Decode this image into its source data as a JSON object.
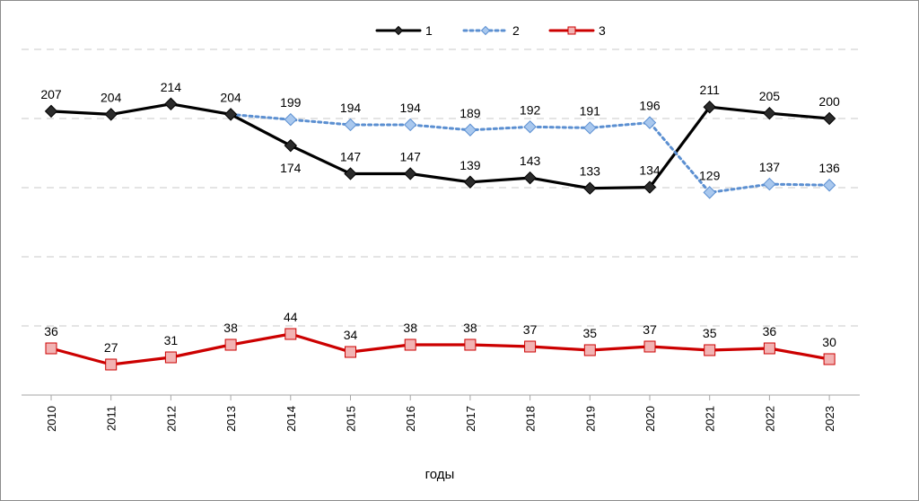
{
  "chart_data": {
    "type": "line",
    "title": "",
    "xlabel": "годы",
    "ylabel": "",
    "x": [
      "2010",
      "2011",
      "2012",
      "2013",
      "2014",
      "2015",
      "2016",
      "2017",
      "2018",
      "2019",
      "2020",
      "2021",
      "2022",
      "2023"
    ],
    "legend_position": "top-center",
    "grid": true,
    "series": [
      {
        "name": "1",
        "color": "#000000",
        "style": "solid",
        "marker": "diamond",
        "values": [
          207,
          204,
          214,
          204,
          174,
          147,
          147,
          139,
          143,
          133,
          134,
          211,
          205,
          200
        ]
      },
      {
        "name": "2",
        "color": "#5b8fd1",
        "style": "dotted",
        "marker": "diamond",
        "values": [
          null,
          null,
          null,
          204,
          199,
          194,
          194,
          189,
          192,
          191,
          196,
          129,
          137,
          136
        ]
      },
      {
        "name": "3",
        "color": "#cc0000",
        "style": "solid",
        "marker": "square",
        "values": [
          36,
          27,
          31,
          38,
          44,
          34,
          38,
          38,
          37,
          35,
          37,
          35,
          36,
          30
        ]
      }
    ]
  }
}
